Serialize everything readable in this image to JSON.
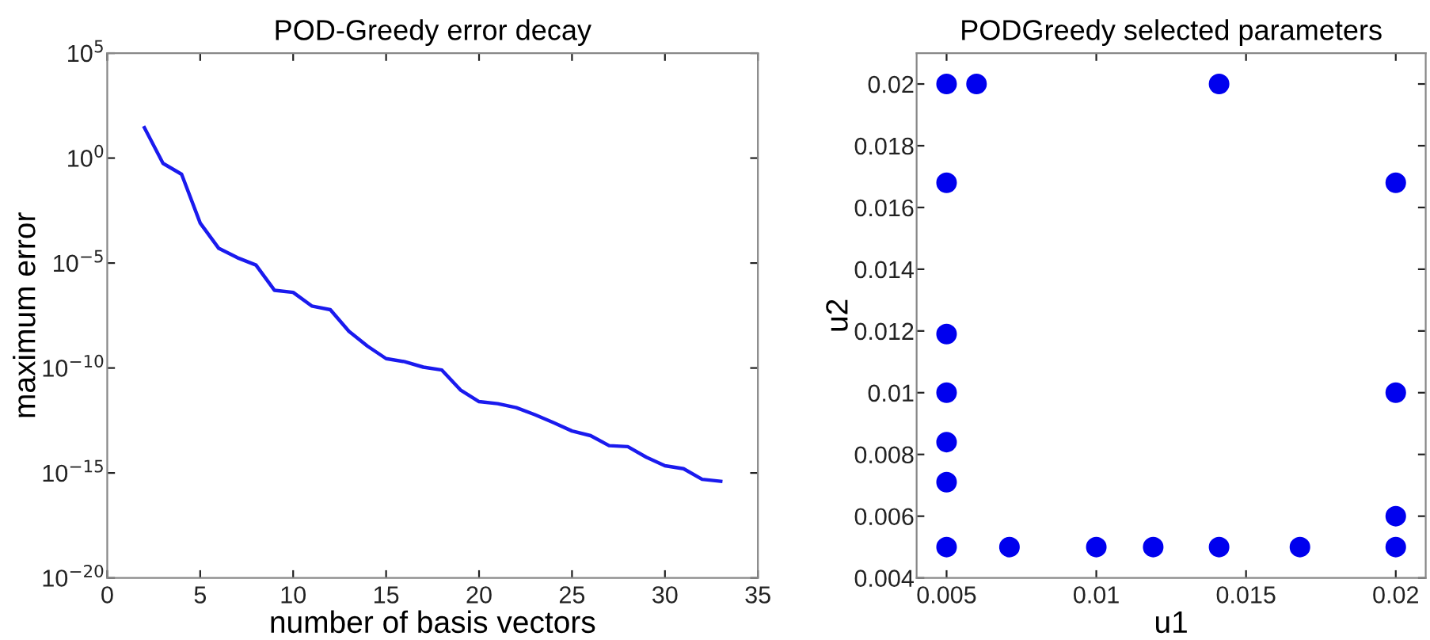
{
  "chart_data": [
    {
      "type": "line",
      "title": "POD-Greedy error decay",
      "xlabel": "number of basis vectors",
      "ylabel": "maximum error",
      "log": "y",
      "xlim": [
        0,
        35
      ],
      "xticks": [
        0,
        5,
        10,
        15,
        20,
        25,
        30,
        35
      ],
      "ylim": [
        1e-20,
        100000.0
      ],
      "yticks": [
        {
          "value": 1e-20,
          "label": "10$^{−20}$"
        },
        {
          "value": 1e-15,
          "label": "10$^{−15}$"
        },
        {
          "value": 1e-10,
          "label": "10$^{−10}$"
        },
        {
          "value": 1e-05,
          "label": "10$^{−5}$"
        },
        {
          "value": 1,
          "label": "10$^{0}$"
        },
        {
          "value": 100000.0,
          "label": "10$^{5}$"
        }
      ],
      "grid": false,
      "marker": "none",
      "line_style": "solid",
      "series": [
        {
          "color": "#1a1aee",
          "x": [
            2,
            3,
            4,
            5,
            6,
            7,
            8,
            9,
            10,
            11,
            12,
            13,
            14,
            15,
            16,
            17,
            18,
            19,
            20,
            21,
            22,
            23,
            24,
            25,
            26,
            27,
            28,
            29,
            30,
            31,
            32,
            33
          ],
          "values": [
            28,
            0.56,
            0.17,
            0.0008,
            5e-05,
            1.8e-05,
            8e-06,
            5e-07,
            4e-07,
            9e-08,
            6e-08,
            5.6e-09,
            1.1e-09,
            2.8e-10,
            2e-10,
            1.1e-10,
            8e-11,
            9e-12,
            2.5e-12,
            2e-12,
            1.3e-12,
            6e-13,
            2.5e-13,
            1e-13,
            6e-14,
            2e-14,
            1.8e-14,
            5.6e-15,
            2.2e-15,
            1.6e-15,
            5e-16,
            4e-16
          ]
        }
      ]
    },
    {
      "type": "scatter",
      "title": "PODGreedy selected parameters",
      "xlabel": "u1",
      "ylabel": "u2",
      "xlim": [
        0.004,
        0.021
      ],
      "xticks": [
        0.005,
        0.01,
        0.015,
        0.02
      ],
      "ylim": [
        0.004,
        0.021
      ],
      "yticks": [
        0.004,
        0.006,
        0.008,
        0.01,
        0.012,
        0.014,
        0.016,
        0.018,
        0.02
      ],
      "grid": false,
      "marker": "circle",
      "series": [
        {
          "color": "#0000ee",
          "x": [
            0.005,
            0.006,
            0.0141,
            0.005,
            0.02,
            0.005,
            0.005,
            0.02,
            0.005,
            0.005,
            0.02,
            0.005,
            0.0071,
            0.01,
            0.0119,
            0.0141,
            0.0168,
            0.02
          ],
          "values": [
            0.02,
            0.02,
            0.02,
            0.0168,
            0.0168,
            0.0119,
            0.01,
            0.01,
            0.0084,
            0.0071,
            0.006,
            0.005,
            0.005,
            0.005,
            0.005,
            0.005,
            0.005,
            0.005
          ]
        }
      ]
    }
  ]
}
